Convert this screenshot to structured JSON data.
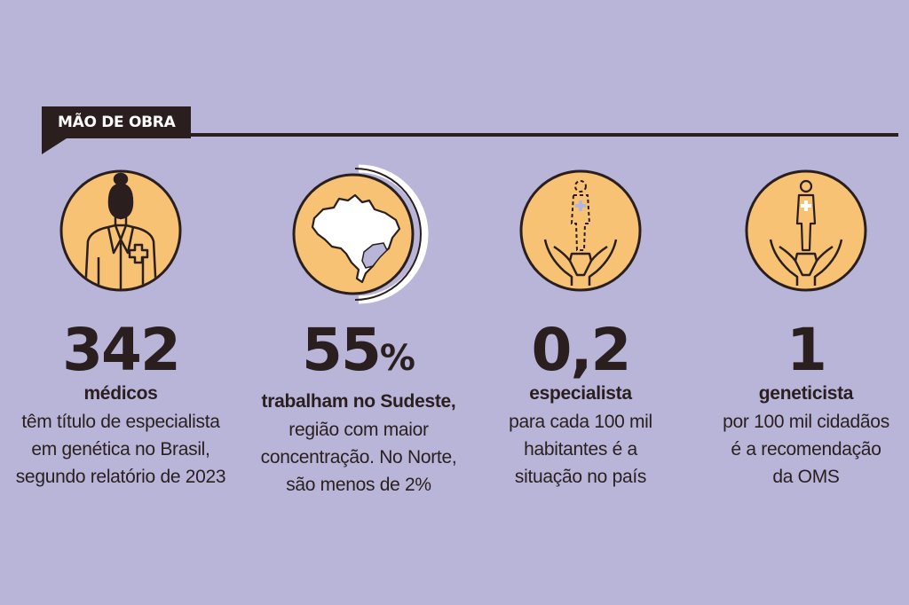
{
  "header": {
    "label": "MÃO DE OBRA"
  },
  "colors": {
    "background": "#b8b5d8",
    "icon_fill": "#f7c274",
    "ink": "#2a1f1e",
    "accent": "#b8b5d8"
  },
  "stats": [
    {
      "icon": "doctor-icon",
      "value": "342",
      "lead": "médicos",
      "lines": [
        "têm título de especialista",
        "em genética no Brasil,",
        "segundo relatório de 2023"
      ]
    },
    {
      "icon": "brazil-map-icon",
      "value": "55",
      "value_suffix": "%",
      "lead": "trabalham no Sudeste,",
      "lines": [
        "região com maior",
        "concentração. No Norte,",
        "são menos de 2%"
      ]
    },
    {
      "icon": "hands-dashed-person-icon",
      "value": "0,2",
      "lead": "especialista",
      "lines": [
        "para cada 100 mil",
        "habitantes é a",
        "situação no país"
      ]
    },
    {
      "icon": "hands-person-icon",
      "value": "1",
      "lead": "geneticista",
      "lines": [
        "por 100 mil cidadãos",
        "é a recomendação",
        "da OMS"
      ]
    }
  ]
}
